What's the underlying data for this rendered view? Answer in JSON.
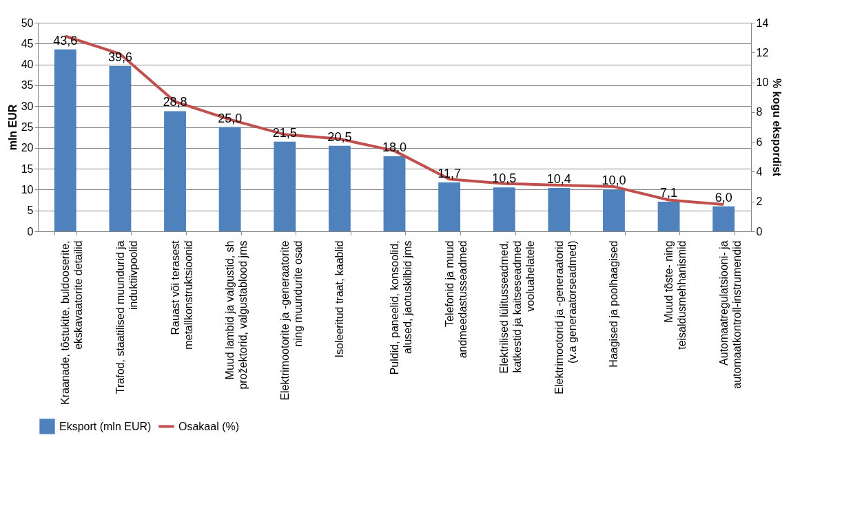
{
  "chart_data": {
    "type": "bar",
    "ylabel": "mln EUR",
    "y2label": "% kogu ekspordist",
    "categories": [
      "Kraanade, tõstukite, buldooserite, ekskavaatorite detailid",
      "Trafod, staatilised muundurid ja induktiivpoolid",
      "Rauast või terasest metallkonstruktsioonid",
      "Muud lambid ja valgustid, sh prožektorid, valgustablood jms",
      "Elektrimootorite ja -generaatorite ning muundurite osad",
      "Isoleeritud traat, kaablid",
      "Puldid, paneelid, konsoolid, alused, jaotuskilbid jms",
      "Telefonid ja muud andmeedastusseadmed",
      "Elektrilised lülitusseadmed, katkestid ja kaitseseadmed vooluahelatele",
      "Elektrimootorid ja -generaatorid (v.a generaatorseadmed)",
      "Haagised ja poolhaagised",
      "Muud tõste- ning teisaldusmehhanismid",
      "Automaatregulatsiooni- ja automaatkontroll-instrumendid"
    ],
    "series": [
      {
        "name": "Eksport (mln EUR)",
        "color": "#4f81bd",
        "values": [
          43.6,
          39.6,
          28.8,
          25.0,
          21.5,
          20.5,
          18.0,
          11.7,
          10.5,
          10.4,
          10.0,
          7.1,
          6.0
        ],
        "value_labels": [
          "43,6",
          "39,6",
          "28,8",
          "25,0",
          "21,5",
          "20,5",
          "18,0",
          "11,7",
          "10,5",
          "10,4",
          "10,0",
          "7,1",
          "6,0"
        ]
      },
      {
        "name": "Osakaal (%)",
        "type": "line",
        "axis": "y2",
        "color": "#c0504d",
        "values": [
          13.1,
          11.9,
          8.7,
          7.5,
          6.5,
          6.2,
          5.4,
          3.5,
          3.2,
          3.1,
          3.0,
          2.1,
          1.8
        ]
      }
    ],
    "ylim": [
      0,
      50
    ],
    "yticks": [
      0,
      5,
      10,
      15,
      20,
      25,
      30,
      35,
      40,
      45,
      50
    ],
    "y2lim": [
      0,
      14
    ],
    "y2ticks": [
      0,
      2,
      4,
      6,
      8,
      10,
      12,
      14
    ],
    "grid": "y",
    "legend": "bottom",
    "marker": "none",
    "line_style": "solid"
  }
}
